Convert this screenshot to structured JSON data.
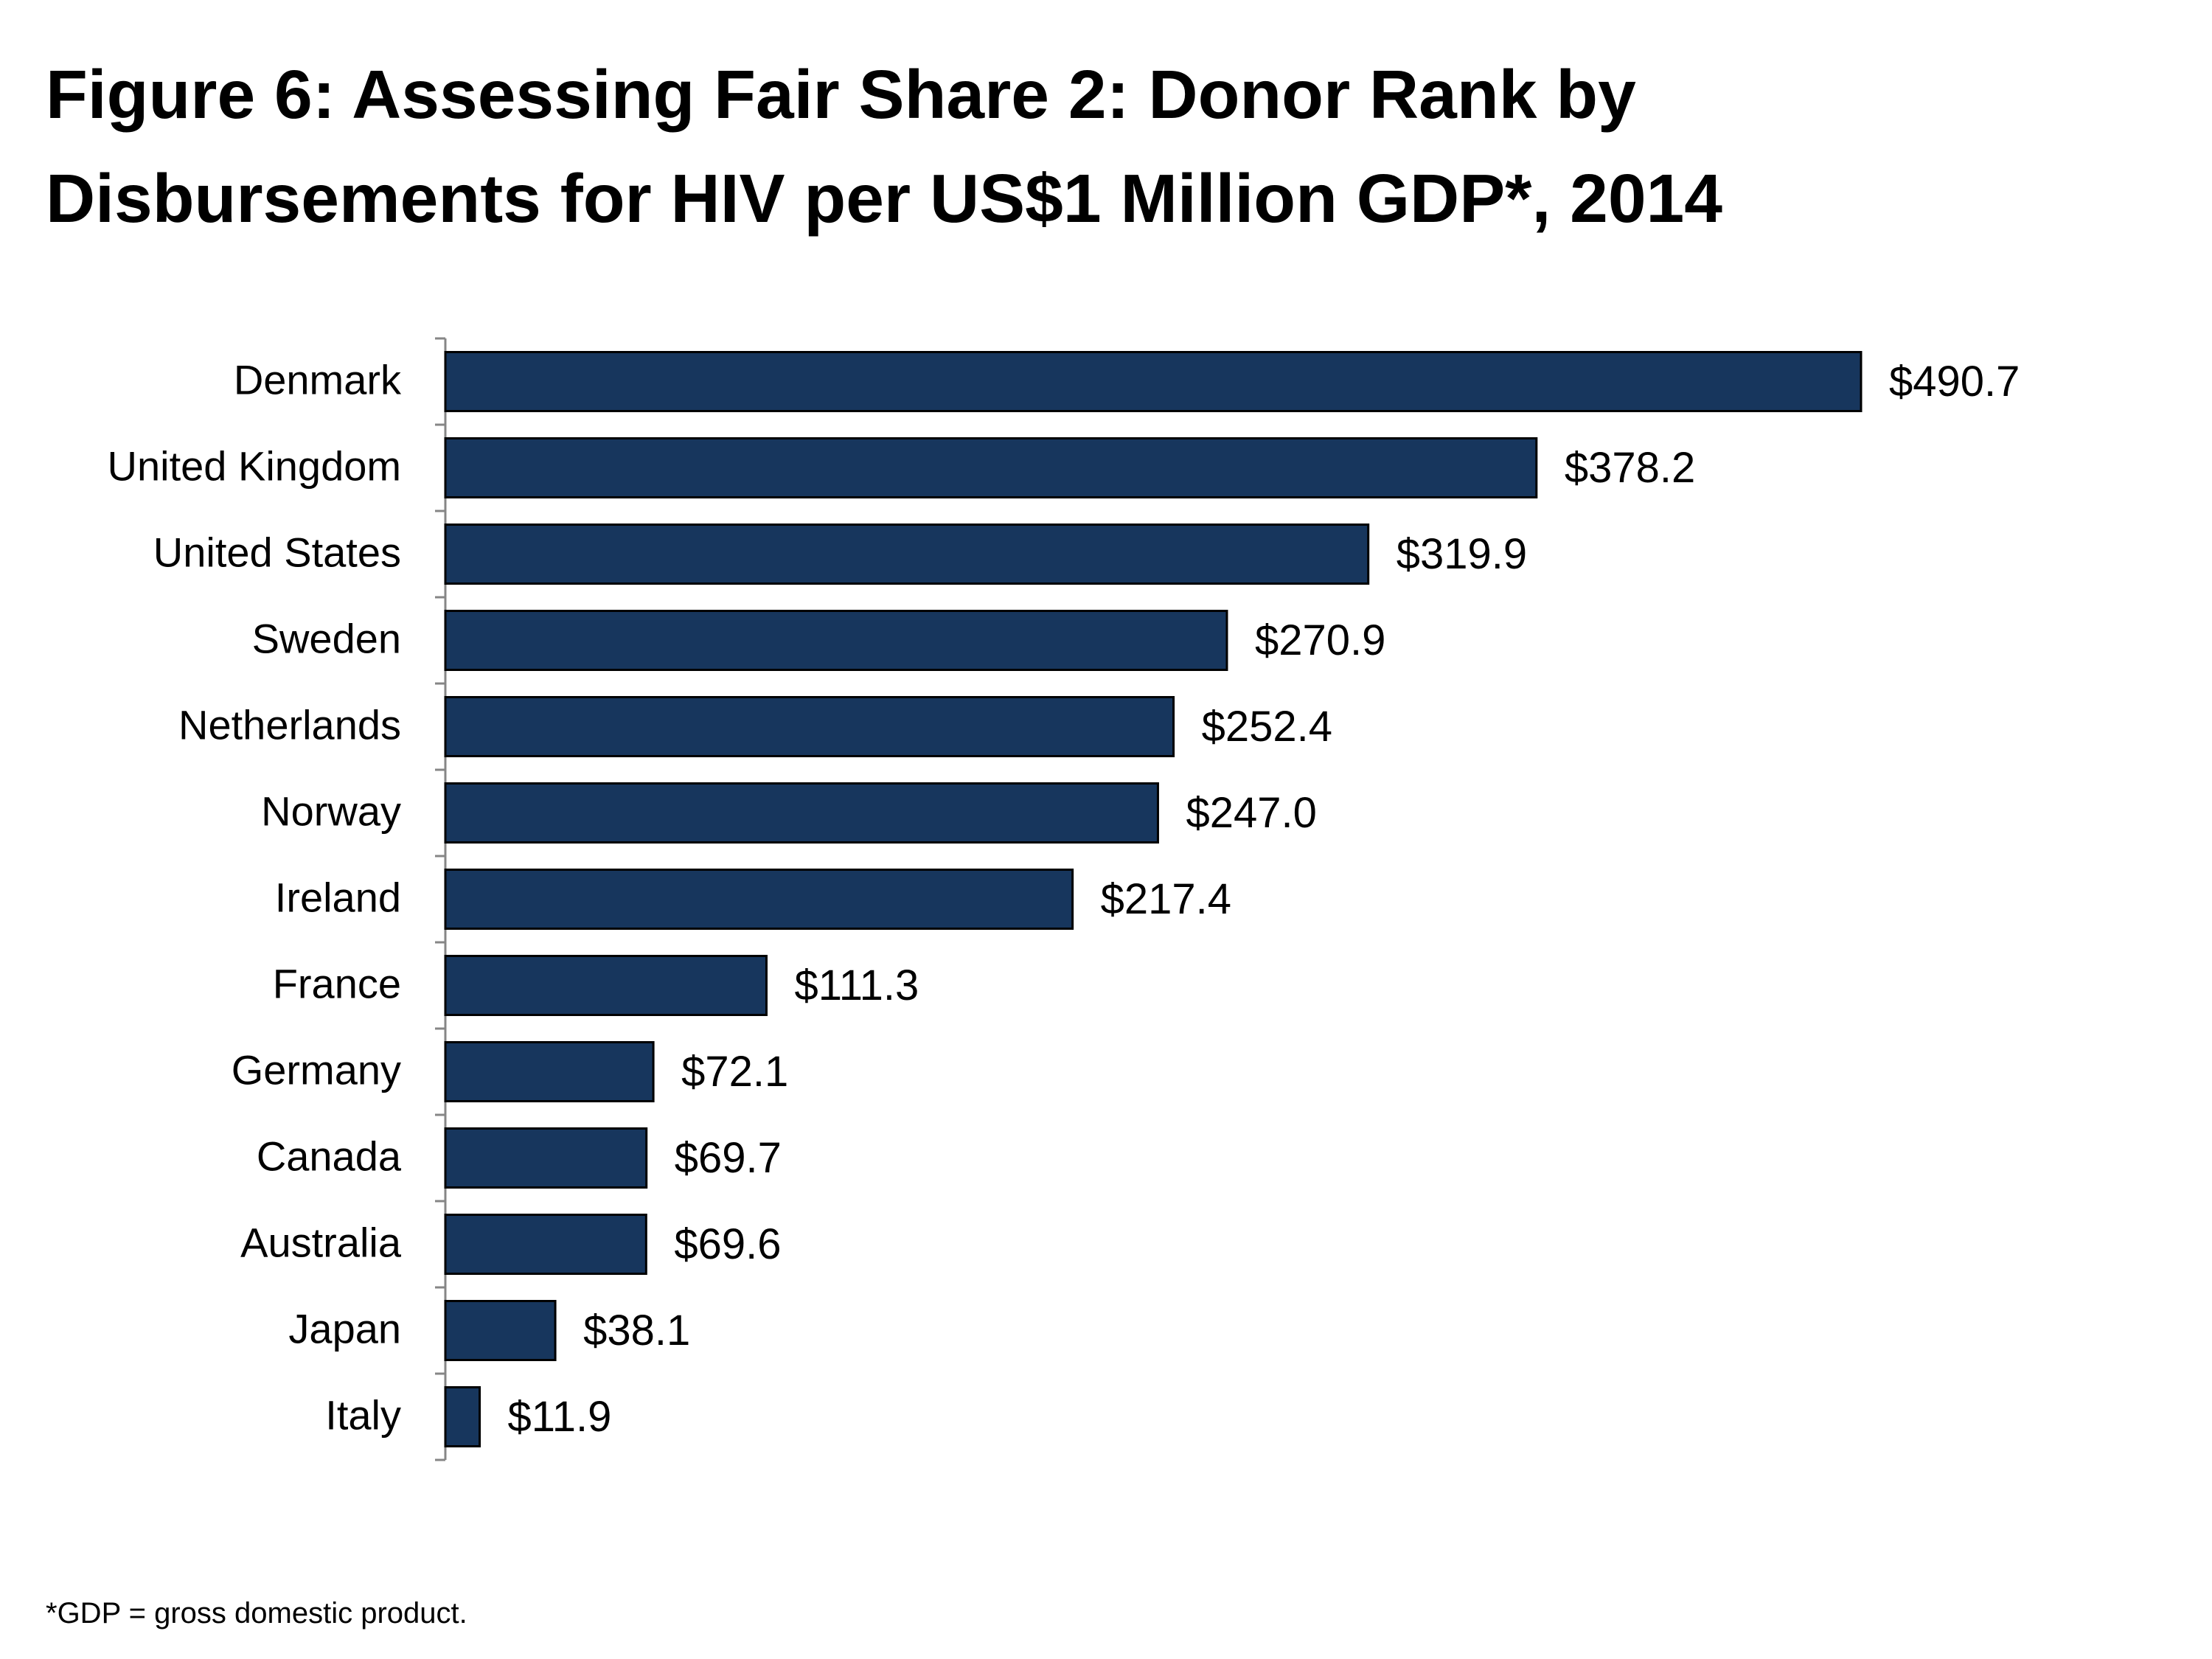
{
  "figure": {
    "title_line1": "Figure 6: Assessing Fair Share 2: Donor Rank by",
    "title_line2": "Disbursements for HIV per US$1 Million GDP*, 2014",
    "footnote": "*GDP = gross domestic product."
  },
  "colors": {
    "bar_fill": "#17365D",
    "bar_stroke": "#000000",
    "axis": "#868686"
  },
  "chart_data": {
    "type": "bar",
    "orientation": "horizontal",
    "title": "Figure 6: Assessing Fair Share 2: Donor Rank by Disbursements for HIV per US$1 Million GDP*, 2014",
    "xlabel": "",
    "ylabel": "",
    "categories": [
      "Denmark",
      "United Kingdom",
      "United States",
      "Sweden",
      "Netherlands",
      "Norway",
      "Ireland",
      "France",
      "Germany",
      "Canada",
      "Australia",
      "Japan",
      "Italy"
    ],
    "values": [
      490.7,
      378.2,
      319.9,
      270.9,
      252.4,
      247.0,
      217.4,
      111.3,
      72.1,
      69.7,
      69.6,
      38.1,
      11.9
    ],
    "data_labels": [
      "$490.7",
      "$378.2",
      "$319.9",
      "$270.9",
      "$252.4",
      "$247.0",
      "$217.4",
      "$111.3",
      "$72.1",
      "$69.7",
      "$69.6",
      "$38.1",
      "$11.9"
    ],
    "xlim": [
      0,
      490.7
    ],
    "grid": false,
    "legend": "none"
  }
}
